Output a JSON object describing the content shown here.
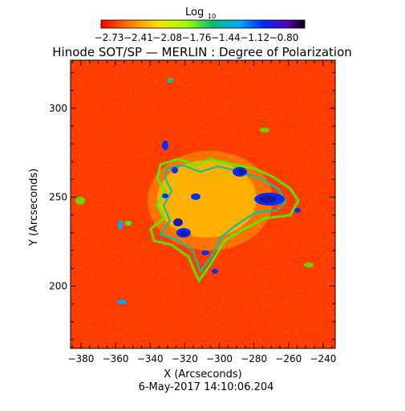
{
  "colorbar": {
    "label": "Log",
    "label_subscript": "10",
    "tick_labels": [
      "-2.73",
      "-2.41",
      "-2.08",
      "-1.76",
      "-1.44",
      "-1.12",
      "-0.80"
    ],
    "colors": [
      "#ff0000",
      "#ff7a00",
      "#ffe000",
      "#9bff00",
      "#00c07a",
      "#00a8ff",
      "#0028ff",
      "#5a00b4",
      "#000000"
    ]
  },
  "title": "Hinode SOT/SP — MERLIN : Degree of Polarization",
  "plot": {
    "xlabel": "X (Arcseconds)",
    "ylabel": "Y (Arcseconds)",
    "x_ticks": [
      "-380",
      "-360",
      "-340",
      "-320",
      "-300",
      "-280",
      "-260",
      "-240"
    ],
    "y_ticks": [
      "200",
      "250",
      "300"
    ],
    "xlim": [
      -386,
      -233
    ],
    "ylim": [
      165,
      327
    ]
  },
  "timestamp": "6-May-2017 14:10:06.204",
  "image_colors": {
    "background": "#ff3a00",
    "dark_red": "#e40000",
    "orange": "#ff8a00",
    "yellow": "#ffe400",
    "green": "#3cff00",
    "teal": "#00c8a0",
    "blue": "#0030ff",
    "navy": "#1a1aa0"
  }
}
